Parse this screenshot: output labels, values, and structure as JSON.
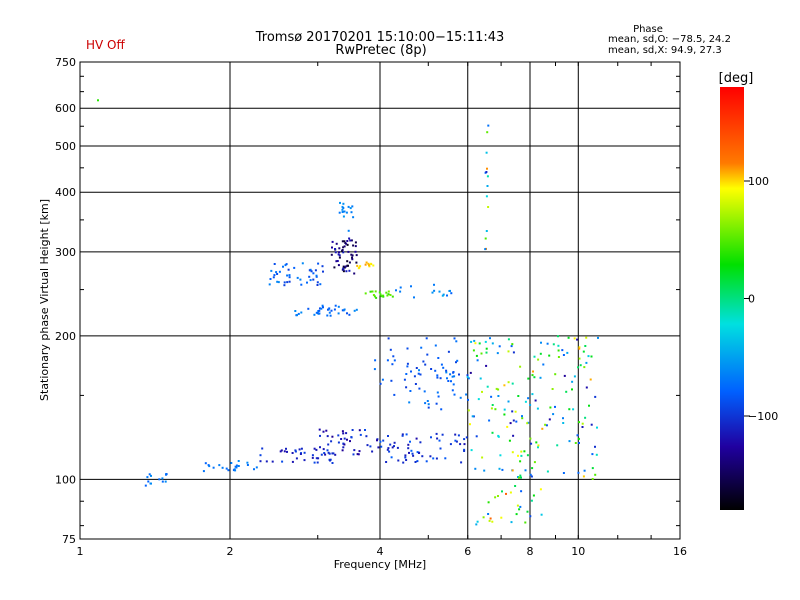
{
  "status_text": "HV Off",
  "title_line1": "Tromsø 20170201 15:10:00−15:11:43",
  "title_line2": "RwPretec (8p)",
  "phase_box": {
    "heading": "Phase",
    "line1": "mean, sd,O:  −78.5, 24.2",
    "line2": "mean, sd,X:  94.9, 27.3"
  },
  "chart_data": {
    "type": "scatter",
    "xlabel": "Frequency [MHz]",
    "ylabel": "Stationary phase Virtual Height [km]",
    "x_scale": "log",
    "y_scale": "log",
    "xlim": [
      1,
      16
    ],
    "ylim": [
      75,
      750
    ],
    "x_ticks": [
      1,
      2,
      4,
      6,
      8,
      10,
      16
    ],
    "x_tick_labels": [
      "1",
      "2",
      "4",
      "6",
      "8",
      "10",
      "16"
    ],
    "y_ticks": [
      75,
      100,
      200,
      300,
      400,
      500,
      600,
      750
    ],
    "y_tick_labels": [
      "75",
      "100",
      "200",
      "300",
      "400",
      "500",
      "600",
      "750"
    ],
    "grid": true,
    "colorbar": {
      "label": "[deg]",
      "range": [
        -180,
        180
      ],
      "ticks": [
        100,
        0,
        -100
      ],
      "tick_labels": [
        "100",
        "0",
        "−100"
      ]
    },
    "clusters": [
      {
        "x": [
          1.05,
          1.5
        ],
        "y": [
          615,
          625
        ],
        "phase": [
          40,
          40
        ],
        "n": 1
      },
      {
        "x": [
          1.35,
          1.5
        ],
        "y": [
          97,
          103
        ],
        "phase": [
          -80,
          -60
        ],
        "n": 14
      },
      {
        "x": [
          1.75,
          2.3
        ],
        "y": [
          104,
          110
        ],
        "phase": [
          -80,
          -60
        ],
        "n": 22
      },
      {
        "x": [
          2.3,
          3.3
        ],
        "y": [
          108,
          117
        ],
        "phase": [
          -120,
          -90
        ],
        "n": 40
      },
      {
        "x": [
          3.0,
          4.0
        ],
        "y": [
          112,
          128
        ],
        "phase": [
          -130,
          -90
        ],
        "n": 45
      },
      {
        "x": [
          4.0,
          6.0
        ],
        "y": [
          108,
          125
        ],
        "phase": [
          -120,
          -80
        ],
        "n": 60
      },
      {
        "x": [
          3.9,
          5.8
        ],
        "y": [
          150,
          200
        ],
        "phase": [
          -100,
          -70
        ],
        "n": 45
      },
      {
        "x": [
          4.5,
          6.2
        ],
        "y": [
          140,
          175
        ],
        "phase": [
          -100,
          -60
        ],
        "n": 30
      },
      {
        "x": [
          6.0,
          11.0
        ],
        "y": [
          100,
          200
        ],
        "phase": [
          -130,
          110
        ],
        "n": 180
      },
      {
        "x": [
          2.4,
          3.1
        ],
        "y": [
          255,
          285
        ],
        "phase": [
          -100,
          -60
        ],
        "n": 45
      },
      {
        "x": [
          3.2,
          3.6
        ],
        "y": [
          270,
          320
        ],
        "phase": [
          -170,
          -110
        ],
        "n": 55
      },
      {
        "x": [
          2.7,
          3.6
        ],
        "y": [
          220,
          232
        ],
        "phase": [
          -90,
          -60
        ],
        "n": 35
      },
      {
        "x": [
          3.3,
          3.6
        ],
        "y": [
          330,
          380
        ],
        "phase": [
          -70,
          -55
        ],
        "n": 16
      },
      {
        "x": [
          3.6,
          3.9
        ],
        "y": [
          275,
          285
        ],
        "phase": [
          90,
          110
        ],
        "n": 12
      },
      {
        "x": [
          3.7,
          4.3
        ],
        "y": [
          240,
          248
        ],
        "phase": [
          40,
          60
        ],
        "n": 18
      },
      {
        "x": [
          4.3,
          5.6
        ],
        "y": [
          240,
          258
        ],
        "phase": [
          -80,
          -40
        ],
        "n": 15
      },
      {
        "x": [
          6.5,
          6.6
        ],
        "y": [
          300,
          560
        ],
        "phase": [
          -130,
          130
        ],
        "n": 14
      },
      {
        "x": [
          6.2,
          8.5
        ],
        "y": [
          80,
          98
        ],
        "phase": [
          -100,
          130
        ],
        "n": 28
      }
    ]
  }
}
